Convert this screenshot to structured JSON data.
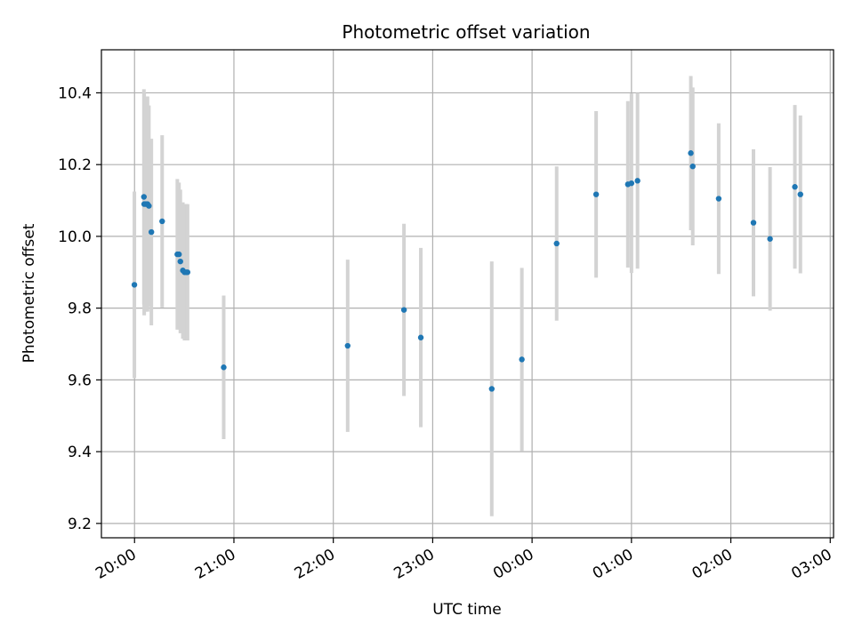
{
  "chart_data": {
    "type": "scatter",
    "title": "Photometric offset variation",
    "xlabel": "UTC time",
    "ylabel": "Photometric offset",
    "x_axis_kind": "time",
    "x_range": [
      "19:40",
      "03:02"
    ],
    "x_ticks": [
      "20:00",
      "21:00",
      "22:00",
      "23:00",
      "00:00",
      "01:00",
      "02:00",
      "03:00"
    ],
    "ylim": [
      9.16,
      10.52
    ],
    "y_ticks": [
      9.2,
      9.4,
      9.6,
      9.8,
      10.0,
      10.2,
      10.4
    ],
    "y_tick_labels": [
      "9.2",
      "9.4",
      "9.6",
      "9.8",
      "10.0",
      "10.2",
      "10.4"
    ],
    "grid": true,
    "point_color": "#1f77b4",
    "errorbar_color": "#d3d3d3",
    "points": [
      {
        "x": "19:59:55",
        "y": 9.865,
        "err": 0.26
      },
      {
        "x": "20:05:40",
        "y": 10.11,
        "err": 0.3
      },
      {
        "x": "20:05:50",
        "y": 10.09,
        "err": 0.31
      },
      {
        "x": "20:06:50",
        "y": 10.09,
        "err": 0.3
      },
      {
        "x": "20:07:50",
        "y": 10.09,
        "err": 0.3
      },
      {
        "x": "20:08:40",
        "y": 10.085,
        "err": 0.28
      },
      {
        "x": "20:10:10",
        "y": 10.012,
        "err": 0.26
      },
      {
        "x": "20:16:40",
        "y": 10.042,
        "err": 0.24
      },
      {
        "x": "20:25:50",
        "y": 9.95,
        "err": 0.21
      },
      {
        "x": "20:26:50",
        "y": 9.95,
        "err": 0.2
      },
      {
        "x": "20:27:40",
        "y": 9.93,
        "err": 0.2
      },
      {
        "x": "20:29:10",
        "y": 9.905,
        "err": 0.19
      },
      {
        "x": "20:30:10",
        "y": 9.9,
        "err": 0.19
      },
      {
        "x": "20:31:10",
        "y": 9.9,
        "err": 0.19
      },
      {
        "x": "20:32:00",
        "y": 9.9,
        "err": 0.19
      },
      {
        "x": "20:53:50",
        "y": 9.635,
        "err": 0.2
      },
      {
        "x": "22:08:40",
        "y": 9.695,
        "err": 0.24
      },
      {
        "x": "22:42:40",
        "y": 9.795,
        "err": 0.24
      },
      {
        "x": "22:52:50",
        "y": 9.718,
        "err": 0.25
      },
      {
        "x": "23:35:40",
        "y": 9.575,
        "err": 0.355
      },
      {
        "x": "23:53:50",
        "y": 9.657,
        "err": 0.255
      },
      {
        "x": "00:14:50",
        "y": 9.98,
        "err": 0.215
      },
      {
        "x": "00:38:40",
        "y": 10.117,
        "err": 0.232
      },
      {
        "x": "00:57:50",
        "y": 10.145,
        "err": 0.232
      },
      {
        "x": "01:00:00",
        "y": 10.148,
        "err": 0.25
      },
      {
        "x": "01:03:40",
        "y": 10.155,
        "err": 0.245
      },
      {
        "x": "01:35:50",
        "y": 10.232,
        "err": 0.215
      },
      {
        "x": "01:37:00",
        "y": 10.195,
        "err": 0.22
      },
      {
        "x": "01:52:40",
        "y": 10.105,
        "err": 0.21
      },
      {
        "x": "02:13:40",
        "y": 10.038,
        "err": 0.205
      },
      {
        "x": "02:23:40",
        "y": 9.993,
        "err": 0.2
      },
      {
        "x": "02:38:40",
        "y": 10.138,
        "err": 0.228
      },
      {
        "x": "02:42:00",
        "y": 10.117,
        "err": 0.22
      }
    ]
  }
}
